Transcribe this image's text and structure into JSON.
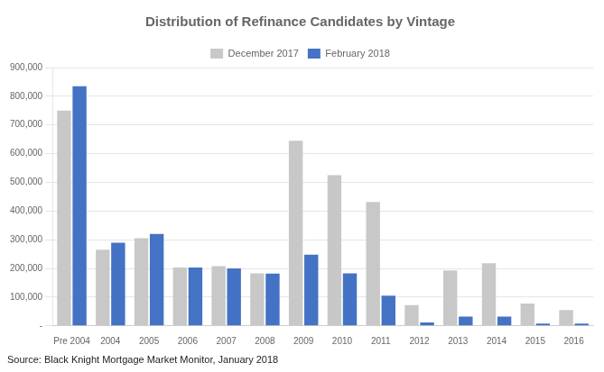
{
  "chart_data": {
    "type": "bar",
    "title": "Distribution of Refinance Candidates by Vintage",
    "categories": [
      "Pre 2004",
      "2004",
      "2005",
      "2006",
      "2007",
      "2008",
      "2009",
      "2010",
      "2011",
      "2012",
      "2013",
      "2014",
      "2015",
      "2016"
    ],
    "series": [
      {
        "name": "December 2017",
        "color": "#c8c8c8",
        "values": [
          750000,
          265000,
          305000,
          203000,
          208000,
          183000,
          645000,
          525000,
          432000,
          72000,
          193000,
          218000,
          78000,
          55000
        ]
      },
      {
        "name": "February 2018",
        "color": "#4472c4",
        "values": [
          835000,
          290000,
          320000,
          203000,
          200000,
          182000,
          248000,
          183000,
          105000,
          12000,
          32000,
          32000,
          8000,
          8000
        ]
      }
    ],
    "ylim": [
      0,
      900000
    ],
    "yticks": [
      {
        "value": 0,
        "label": "-"
      },
      {
        "value": 100000,
        "label": "100,000"
      },
      {
        "value": 200000,
        "label": "200,000"
      },
      {
        "value": 300000,
        "label": "300,000"
      },
      {
        "value": 400000,
        "label": "400,000"
      },
      {
        "value": 500000,
        "label": "500,000"
      },
      {
        "value": 600000,
        "label": "600,000"
      },
      {
        "value": 700000,
        "label": "700,000"
      },
      {
        "value": 800000,
        "label": "800,000"
      },
      {
        "value": 900000,
        "label": "900,000"
      }
    ],
    "annotations": [
      "Source: Black Knight Mortgage Market Monitor, January 2018"
    ],
    "grid": true,
    "legend": "top"
  }
}
